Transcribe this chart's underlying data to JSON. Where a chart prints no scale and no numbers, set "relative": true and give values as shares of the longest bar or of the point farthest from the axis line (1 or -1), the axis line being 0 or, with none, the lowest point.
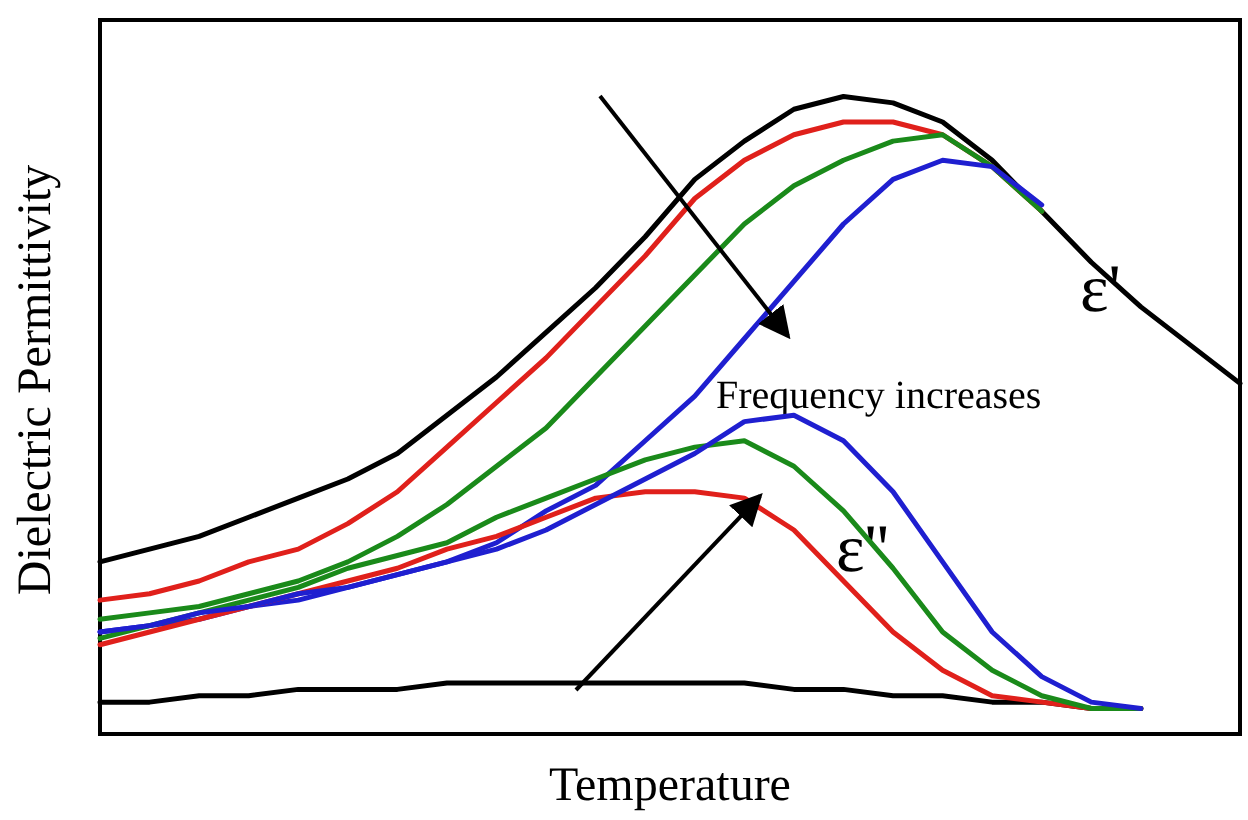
{
  "chart_data": {
    "type": "line",
    "relative": true,
    "xlabel": "Temperature",
    "ylabel": "Dielectric Permittivity",
    "annotations": [
      "ε'",
      "ε''",
      "Frequency increases"
    ],
    "categories": [
      null,
      null,
      null,
      null,
      null,
      null,
      null,
      null,
      null,
      null,
      null,
      null,
      null,
      null,
      null,
      null,
      null,
      null,
      null,
      null,
      null,
      null,
      null,
      null
    ],
    "marker": "none",
    "line_style": "solid",
    "grid": false,
    "series": [
      {
        "color": "#000000",
        "values": [
          0.27,
          0.29,
          0.31,
          0.34,
          0.37,
          0.4,
          0.44,
          0.5,
          0.56,
          0.63,
          0.7,
          0.78,
          0.87,
          0.93,
          0.98,
          1.0,
          0.99,
          0.96,
          0.9,
          0.82,
          0.74,
          0.67,
          0.61,
          0.55
        ]
      },
      {
        "color": "#e0201b",
        "values": [
          0.21,
          0.22,
          0.24,
          0.27,
          0.29,
          0.33,
          0.38,
          0.45,
          0.52,
          0.59,
          0.67,
          0.75,
          0.84,
          0.9,
          0.94,
          0.96,
          0.96,
          0.94,
          0.89,
          0.82,
          null,
          null,
          null,
          null
        ]
      },
      {
        "color": "#1a8a1a",
        "values": [
          0.18,
          0.19,
          0.2,
          0.22,
          0.24,
          0.27,
          0.31,
          0.36,
          0.42,
          0.48,
          0.56,
          0.64,
          0.72,
          0.8,
          0.86,
          0.9,
          0.93,
          0.94,
          0.89,
          0.82,
          null,
          null,
          null,
          null
        ]
      },
      {
        "color": "#1f1fd0",
        "values": [
          0.16,
          0.17,
          0.18,
          0.2,
          0.21,
          0.23,
          0.25,
          0.27,
          0.3,
          0.35,
          0.39,
          0.46,
          0.53,
          0.62,
          0.71,
          0.8,
          0.87,
          0.9,
          0.89,
          0.83,
          null,
          null,
          null,
          null
        ]
      },
      {
        "color": "#000000",
        "values": [
          0.05,
          0.05,
          0.06,
          0.06,
          0.07,
          0.07,
          0.07,
          0.08,
          0.08,
          0.08,
          0.08,
          0.08,
          0.08,
          0.08,
          0.07,
          0.07,
          0.06,
          0.06,
          0.05,
          0.05,
          0.04,
          0.04,
          null,
          null
        ]
      },
      {
        "color": "#e0201b",
        "values": [
          0.14,
          0.16,
          0.18,
          0.2,
          0.22,
          0.24,
          0.26,
          0.29,
          0.31,
          0.34,
          0.37,
          0.38,
          0.38,
          0.37,
          0.32,
          0.24,
          0.16,
          0.1,
          0.06,
          0.05,
          0.04,
          0.04,
          null,
          null
        ]
      },
      {
        "color": "#1a8a1a",
        "values": [
          0.15,
          0.17,
          0.19,
          0.21,
          0.23,
          0.26,
          0.28,
          0.3,
          0.34,
          0.37,
          0.4,
          0.43,
          0.45,
          0.46,
          0.42,
          0.35,
          0.26,
          0.16,
          0.1,
          0.06,
          0.04,
          0.04,
          null,
          null
        ]
      },
      {
        "color": "#1f1fd0",
        "values": [
          0.16,
          0.17,
          0.19,
          0.2,
          0.22,
          0.23,
          0.25,
          0.27,
          0.29,
          0.32,
          0.36,
          0.4,
          0.44,
          0.49,
          0.5,
          0.46,
          0.38,
          0.27,
          0.16,
          0.09,
          0.05,
          0.04,
          null,
          null
        ]
      }
    ]
  }
}
